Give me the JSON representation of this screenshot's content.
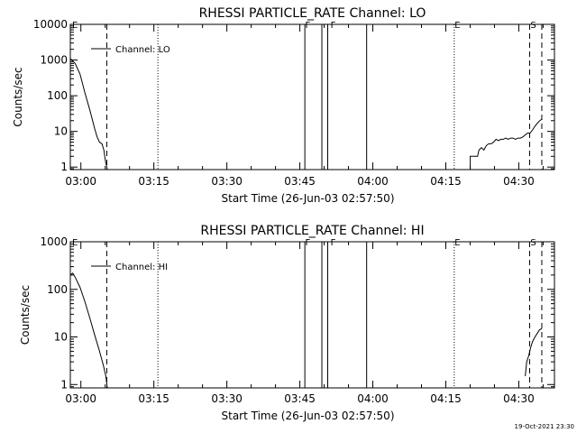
{
  "footer": {
    "timestamp": "19-Oct-2021 23:30"
  },
  "chart_data": [
    {
      "type": "line",
      "title": "RHESSI PARTICLE_RATE Channel: LO",
      "xlabel": "Start Time (26-Jun-03 02:57:50)",
      "ylabel": "Counts/sec",
      "yscale": "log",
      "xlim": [
        0,
        99.5
      ],
      "ylim": [
        0.85,
        10000
      ],
      "xticks": [
        {
          "t": 2.17,
          "label": "03:00"
        },
        {
          "t": 17.17,
          "label": "03:15"
        },
        {
          "t": 32.17,
          "label": "03:30"
        },
        {
          "t": 47.17,
          "label": "03:45"
        },
        {
          "t": 62.17,
          "label": "04:00"
        },
        {
          "t": 77.17,
          "label": "04:15"
        },
        {
          "t": 92.17,
          "label": "04:30"
        }
      ],
      "yticks": [
        {
          "v": 1,
          "label": "1"
        },
        {
          "v": 10,
          "label": "10"
        },
        {
          "v": 100,
          "label": "100"
        },
        {
          "v": 1000,
          "label": "1000"
        },
        {
          "v": 10000,
          "label": "10000"
        }
      ],
      "legend": {
        "label": "Channel: LO",
        "position": "top-left"
      },
      "event_lines": [
        {
          "t": 7.5,
          "style": "dashed"
        },
        {
          "t": 18.0,
          "style": "dotted"
        },
        {
          "t": 48.2,
          "style": "solid"
        },
        {
          "t": 51.7,
          "style": "solid"
        },
        {
          "t": 52.9,
          "style": "solid"
        },
        {
          "t": 60.9,
          "style": "solid"
        },
        {
          "t": 78.9,
          "style": "dotted"
        },
        {
          "t": 94.4,
          "style": "dashed"
        },
        {
          "t": 96.9,
          "style": "dashed"
        }
      ],
      "event_labels": [
        {
          "t": 0.0,
          "label": "E"
        },
        {
          "t": 47.9,
          "label": "F"
        },
        {
          "t": 53.1,
          "label": "F"
        },
        {
          "t": 78.6,
          "label": "E"
        },
        {
          "t": 94.2,
          "label": "S"
        }
      ],
      "series": [
        {
          "name": "Channel: LO",
          "segments": [
            {
              "x": [
                0.0,
                1.0,
                2.0,
                3.0,
                4.0,
                5.0,
                5.5,
                6.0,
                6.5,
                6.9,
                7.2,
                7.6
              ],
              "y": [
                1100,
                800,
                400,
                120,
                40,
                12,
                7,
                5,
                4.5,
                3,
                1.5,
                0.85
              ]
            },
            {
              "x": [
                82.2,
                82.2,
                83.7,
                84.0,
                84.5,
                85.0,
                85.5,
                86.0,
                86.5,
                87.0,
                87.5,
                88.0,
                88.5,
                89.0,
                89.5,
                90.0,
                90.5,
                91.0,
                91.5,
                92.0,
                92.5,
                93.0,
                93.5,
                94.0,
                94.5,
                95.0,
                95.5,
                96.0,
                96.5,
                96.9
              ],
              "y": [
                0.85,
                2,
                2,
                3,
                3.5,
                3,
                4,
                4.5,
                4.5,
                5,
                6,
                5.5,
                6,
                6,
                6.5,
                6,
                6.5,
                6.5,
                6,
                6.5,
                6.5,
                7,
                8,
                9,
                9,
                11,
                14,
                17,
                20,
                22
              ]
            }
          ]
        }
      ]
    },
    {
      "type": "line",
      "title": "RHESSI PARTICLE_RATE Channel: HI",
      "xlabel": "Start Time (26-Jun-03 02:57:50)",
      "ylabel": "Counts/sec",
      "yscale": "log",
      "xlim": [
        0,
        99.5
      ],
      "ylim": [
        0.85,
        1000
      ],
      "xticks": [
        {
          "t": 2.17,
          "label": "03:00"
        },
        {
          "t": 17.17,
          "label": "03:15"
        },
        {
          "t": 32.17,
          "label": "03:30"
        },
        {
          "t": 47.17,
          "label": "03:45"
        },
        {
          "t": 62.17,
          "label": "04:00"
        },
        {
          "t": 77.17,
          "label": "04:15"
        },
        {
          "t": 92.17,
          "label": "04:30"
        }
      ],
      "yticks": [
        {
          "v": 1,
          "label": "1"
        },
        {
          "v": 10,
          "label": "10"
        },
        {
          "v": 100,
          "label": "100"
        },
        {
          "v": 1000,
          "label": "1000"
        }
      ],
      "legend": {
        "label": "Channel: HI",
        "position": "top-left"
      },
      "event_lines": [
        {
          "t": 7.5,
          "style": "dashed"
        },
        {
          "t": 18.0,
          "style": "dotted"
        },
        {
          "t": 48.2,
          "style": "solid"
        },
        {
          "t": 51.7,
          "style": "solid"
        },
        {
          "t": 52.9,
          "style": "solid"
        },
        {
          "t": 60.9,
          "style": "solid"
        },
        {
          "t": 78.9,
          "style": "dotted"
        },
        {
          "t": 94.4,
          "style": "dashed"
        },
        {
          "t": 96.9,
          "style": "dashed"
        }
      ],
      "event_labels": [
        {
          "t": 0.0,
          "label": "E"
        },
        {
          "t": 47.9,
          "label": "F"
        },
        {
          "t": 53.1,
          "label": "F"
        },
        {
          "t": 78.6,
          "label": "E"
        },
        {
          "t": 94.2,
          "label": "S"
        }
      ],
      "series": [
        {
          "name": "Channel: HI",
          "segments": [
            {
              "x": [
                0.0,
                0.5,
                1.0,
                2.0,
                3.0,
                4.0,
                5.0,
                6.0,
                6.8,
                7.3,
                7.6
              ],
              "y": [
                200,
                220,
                180,
                110,
                55,
                25,
                11,
                5,
                2.5,
                1.5,
                0.85
              ]
            },
            {
              "x": [
                93.5,
                93.8,
                94.2,
                94.6,
                95.0,
                95.5,
                96.0,
                96.4,
                96.9
              ],
              "y": [
                1.5,
                3,
                4,
                6,
                8,
                10,
                12,
                14,
                15
              ]
            }
          ]
        }
      ]
    }
  ]
}
